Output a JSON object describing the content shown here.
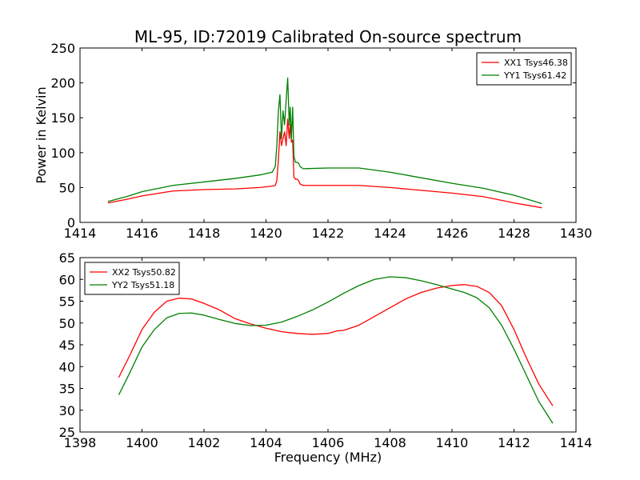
{
  "title": "ML-95, ID:72019 Calibrated On-source spectrum",
  "chart_data": [
    {
      "type": "line",
      "ylabel": "Power in Kelvin",
      "xlabel": "",
      "xlim": [
        1414,
        1430
      ],
      "ylim": [
        0,
        250
      ],
      "xticks": [
        1414,
        1416,
        1418,
        1420,
        1422,
        1424,
        1426,
        1428,
        1430
      ],
      "yticks": [
        0,
        50,
        100,
        150,
        200,
        250
      ],
      "grid": false,
      "legend_position": "top-right",
      "series": [
        {
          "name": "XX1 Tsys46.38",
          "color": "#ff0000",
          "x": [
            1414.9,
            1415.5,
            1416.0,
            1417.0,
            1418.0,
            1419.0,
            1419.8,
            1420.2,
            1420.3,
            1420.35,
            1420.4,
            1420.45,
            1420.5,
            1420.55,
            1420.6,
            1420.65,
            1420.7,
            1420.75,
            1420.78,
            1420.82,
            1420.86,
            1420.9,
            1420.95,
            1421.0,
            1421.05,
            1421.1,
            1421.2,
            1422.0,
            1423.0,
            1424.0,
            1425.0,
            1426.0,
            1427.0,
            1428.0,
            1428.9
          ],
          "y": [
            28,
            33,
            38,
            45,
            47,
            48,
            50,
            52,
            53,
            60,
            90,
            130,
            110,
            120,
            130,
            110,
            148,
            120,
            140,
            115,
            118,
            65,
            62,
            62,
            60,
            55,
            53,
            53,
            53,
            50,
            46,
            42,
            37,
            28,
            21
          ]
        },
        {
          "name": "YY1 Tsys61.42",
          "color": "#008000",
          "x": [
            1414.9,
            1415.5,
            1416.0,
            1417.0,
            1418.0,
            1419.0,
            1419.8,
            1420.2,
            1420.3,
            1420.35,
            1420.4,
            1420.45,
            1420.5,
            1420.55,
            1420.6,
            1420.65,
            1420.7,
            1420.75,
            1420.78,
            1420.82,
            1420.86,
            1420.9,
            1420.95,
            1421.0,
            1421.05,
            1421.1,
            1421.2,
            1422.0,
            1423.0,
            1424.0,
            1425.0,
            1426.0,
            1427.0,
            1428.0,
            1428.9
          ],
          "y": [
            30,
            37,
            44,
            53,
            58,
            63,
            68,
            72,
            80,
            110,
            160,
            183,
            120,
            160,
            140,
            175,
            207,
            140,
            165,
            120,
            165,
            95,
            86,
            86,
            85,
            80,
            77,
            78,
            78,
            72,
            64,
            56,
            49,
            39,
            27
          ]
        }
      ]
    },
    {
      "type": "line",
      "ylabel": "",
      "xlabel": "Frequency (MHz)",
      "xlim": [
        1398,
        1414
      ],
      "ylim": [
        25,
        65
      ],
      "xticks": [
        1398,
        1400,
        1402,
        1404,
        1406,
        1408,
        1410,
        1412,
        1414
      ],
      "yticks": [
        25,
        30,
        35,
        40,
        45,
        50,
        55,
        60,
        65
      ],
      "grid": false,
      "legend_position": "top-left",
      "series": [
        {
          "name": "XX2 Tsys50.82",
          "color": "#ff0000",
          "x": [
            1399.25,
            1399.6,
            1400.0,
            1400.4,
            1400.8,
            1401.2,
            1401.6,
            1402.0,
            1402.5,
            1403.0,
            1403.5,
            1404.0,
            1404.5,
            1405.0,
            1405.5,
            1406.0,
            1406.3,
            1406.5,
            1407.0,
            1407.5,
            1408.0,
            1408.5,
            1409.0,
            1409.5,
            1410.0,
            1410.4,
            1410.8,
            1411.2,
            1411.6,
            1412.0,
            1412.4,
            1412.8,
            1413.25
          ],
          "y": [
            37.5,
            42.5,
            48.5,
            52.5,
            55.0,
            55.7,
            55.5,
            54.5,
            53.0,
            51.0,
            49.8,
            48.8,
            48.0,
            47.6,
            47.4,
            47.6,
            48.2,
            48.3,
            49.5,
            51.5,
            53.5,
            55.5,
            57.0,
            58.0,
            58.6,
            58.8,
            58.4,
            57.0,
            54.0,
            48.5,
            42.0,
            36.0,
            31.0
          ]
        },
        {
          "name": "YY2 Tsys51.18",
          "color": "#008000",
          "x": [
            1399.25,
            1399.6,
            1400.0,
            1400.4,
            1400.8,
            1401.2,
            1401.6,
            1402.0,
            1402.5,
            1403.0,
            1403.5,
            1404.0,
            1404.5,
            1405.0,
            1405.5,
            1406.0,
            1406.3,
            1406.5,
            1407.0,
            1407.5,
            1408.0,
            1408.5,
            1409.0,
            1409.5,
            1410.0,
            1410.4,
            1410.8,
            1411.2,
            1411.6,
            1412.0,
            1412.4,
            1412.8,
            1413.25
          ],
          "y": [
            33.5,
            38.5,
            44.5,
            48.5,
            51.2,
            52.2,
            52.3,
            51.8,
            50.8,
            49.9,
            49.4,
            49.5,
            50.2,
            51.5,
            53.0,
            54.8,
            56.0,
            56.8,
            58.6,
            60.0,
            60.6,
            60.4,
            59.7,
            58.8,
            57.8,
            57.0,
            55.8,
            53.5,
            49.5,
            44.0,
            38.0,
            32.0,
            27.0
          ]
        }
      ]
    }
  ]
}
